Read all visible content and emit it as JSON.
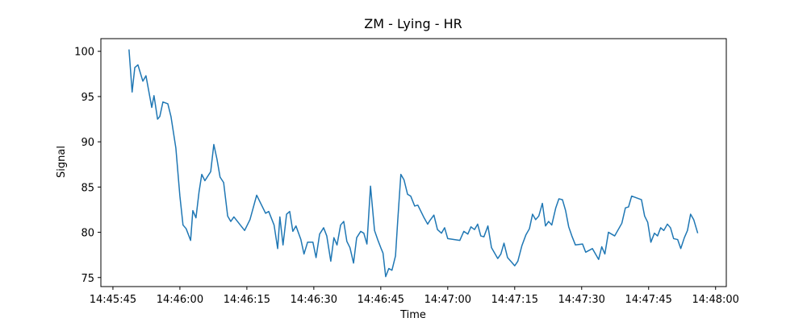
{
  "chart_data": {
    "type": "line",
    "title": "ZM - Lying - HR",
    "x_label": "Time",
    "y_label": "Signal",
    "x": [
      "14:45:48.6",
      "14:45:49.3",
      "14:45:49.9",
      "14:45:50.6",
      "14:45:51.7",
      "14:45:52.4",
      "14:45:53.7",
      "14:45:54.2",
      "14:45:55.0",
      "14:45:55.5",
      "14:45:56.2",
      "14:45:57.3",
      "14:45:58.0",
      "14:45:59.1",
      "14:46:00.0",
      "14:46:00.7",
      "14:46:01.4",
      "14:46:02.4",
      "14:46:02.9",
      "14:46:03.6",
      "14:46:04.3",
      "14:46:04.9",
      "14:46:05.6",
      "14:46:06.9",
      "14:46:07.6",
      "14:46:08.3",
      "14:46:09.0",
      "14:46:09.8",
      "14:46:10.7",
      "14:46:11.4",
      "14:46:12.1",
      "14:46:14.5",
      "14:46:15.7",
      "14:46:17.2",
      "14:46:19.2",
      "14:46:19.9",
      "14:46:21.1",
      "14:46:21.9",
      "14:46:22.4",
      "14:46:23.1",
      "14:46:23.9",
      "14:46:24.6",
      "14:46:25.3",
      "14:46:26.0",
      "14:46:27.1",
      "14:46:27.8",
      "14:46:28.6",
      "14:46:29.8",
      "14:46:30.5",
      "14:46:31.3",
      "14:46:32.2",
      "14:46:32.9",
      "14:46:33.8",
      "14:46:34.5",
      "14:46:35.2",
      "14:46:36.0",
      "14:46:36.7",
      "14:46:37.4",
      "14:46:38.1",
      "14:46:38.9",
      "14:46:39.6",
      "14:46:40.5",
      "14:46:41.2",
      "14:46:41.9",
      "14:46:42.7",
      "14:46:43.6",
      "14:46:44.3",
      "14:46:45.0",
      "14:46:45.5",
      "14:46:46.1",
      "14:46:46.8",
      "14:46:47.5",
      "14:46:48.3",
      "14:46:48.8",
      "14:46:49.5",
      "14:46:50.2",
      "14:46:51.0",
      "14:46:51.7",
      "14:46:52.6",
      "14:46:53.3",
      "14:46:54.6",
      "14:46:55.5",
      "14:46:56.0",
      "14:46:56.9",
      "14:46:57.7",
      "14:46:58.6",
      "14:46:59.3",
      "14:47:00.0",
      "14:47:02.7",
      "14:47:03.6",
      "14:47:04.5",
      "14:47:05.2",
      "14:47:06.0",
      "14:47:06.7",
      "14:47:07.4",
      "14:47:08.1",
      "14:47:09.0",
      "14:47:09.8",
      "14:47:11.2",
      "14:47:11.9",
      "14:47:12.6",
      "14:47:13.4",
      "14:47:14.3",
      "14:47:15.0",
      "14:47:15.7",
      "14:47:16.6",
      "14:47:17.5",
      "14:47:18.3",
      "14:47:19.0",
      "14:47:19.7",
      "14:47:20.4",
      "14:47:21.2",
      "14:47:21.9",
      "14:47:22.6",
      "14:47:23.3",
      "14:47:24.2",
      "14:47:24.9",
      "14:47:25.7",
      "14:47:26.4",
      "14:47:27.1",
      "14:47:27.8",
      "14:47:28.6",
      "14:47:30.2",
      "14:47:30.9",
      "14:47:32.4",
      "14:47:33.8",
      "14:47:34.5",
      "14:47:35.2",
      "14:47:36.0",
      "14:47:37.4",
      "14:47:39.0",
      "14:47:39.8",
      "14:47:40.5",
      "14:47:41.2",
      "14:47:43.4",
      "14:47:44.1",
      "14:47:44.8",
      "14:47:45.5",
      "14:47:46.3",
      "14:47:47.0",
      "14:47:47.7",
      "14:47:48.4",
      "14:47:49.2",
      "14:47:49.9",
      "14:47:50.6",
      "14:47:51.5",
      "14:47:52.2",
      "14:47:53.0",
      "14:47:53.7",
      "14:47:54.4",
      "14:47:55.1",
      "14:47:56.0"
    ],
    "series": [
      {
        "color": "#1f77b4",
        "values": [
          100.2,
          95.5,
          98.2,
          98.5,
          96.7,
          97.3,
          93.8,
          95.1,
          92.5,
          92.8,
          94.4,
          94.2,
          92.8,
          89.3,
          84,
          80.8,
          80.4,
          79.1,
          82.4,
          81.6,
          84.5,
          86.4,
          85.7,
          86.7,
          89.7,
          88.1,
          86.1,
          85.5,
          81.8,
          81.2,
          81.7,
          80.2,
          81.4,
          84.1,
          82.1,
          82.3,
          80.8,
          78.2,
          81.7,
          78.6,
          82.0,
          82.3,
          80.1,
          80.7,
          79.2,
          77.6,
          78.9,
          78.9,
          77.2,
          79.8,
          80.5,
          79.6,
          76.8,
          79.4,
          78.6,
          80.8,
          81.2,
          79.0,
          78.3,
          76.6,
          79.4,
          80.1,
          79.9,
          78.7,
          85.1,
          80.2,
          79.2,
          78.3,
          77.7,
          75.1,
          76.0,
          75.8,
          77.4,
          81.3,
          86.4,
          85.8,
          84.2,
          84.0,
          82.9,
          83.0,
          81.7,
          80.9,
          81.3,
          81.9,
          80.3,
          79.9,
          80.5,
          79.3,
          79.1,
          80.1,
          79.8,
          80.6,
          80.3,
          80.9,
          79.6,
          79.5,
          80.7,
          78.3,
          77.1,
          77.6,
          78.8,
          77.2,
          76.7,
          76.3,
          76.8,
          78.5,
          79.7,
          80.4,
          82.0,
          81.4,
          81.8,
          83.2,
          80.7,
          81.2,
          80.8,
          82.7,
          83.7,
          83.6,
          82.4,
          80.6,
          79.6,
          78.6,
          78.7,
          77.8,
          78.2,
          77.0,
          78.4,
          77.6,
          80.0,
          79.6,
          81.0,
          82.7,
          82.8,
          84.0,
          83.6,
          81.8,
          81.1,
          78.9,
          79.9,
          79.6,
          80.5,
          80.2,
          80.9,
          80.5,
          79.3,
          79.2,
          78.2,
          79.4,
          80.2,
          82.0,
          81.4,
          79.9
        ]
      }
    ],
    "xlim": [
      "14:45:42.3",
      "14:48:02.4"
    ],
    "xticks": [
      "14:45:45",
      "14:46:00",
      "14:46:15",
      "14:46:30",
      "14:46:45",
      "14:47:00",
      "14:47:15",
      "14:47:30",
      "14:47:45",
      "14:48:00"
    ],
    "ylim": [
      74.0,
      101.4
    ],
    "yticks": [
      75,
      80,
      85,
      90,
      95,
      100
    ]
  }
}
